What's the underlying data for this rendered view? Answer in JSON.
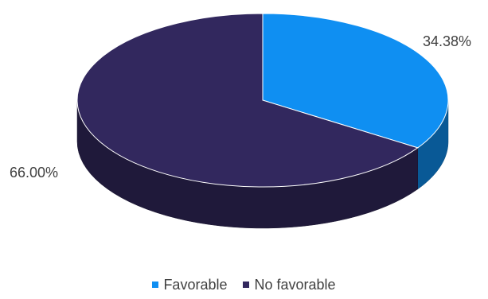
{
  "chart_data": {
    "type": "pie",
    "categories": [
      "Favorable",
      "No favorable"
    ],
    "values": [
      34.38,
      66.0
    ],
    "data_labels": [
      "34.38%",
      "66.00%"
    ],
    "colors": [
      "#0f8ff2",
      "#32285e"
    ],
    "legend_position": "bottom",
    "three_d": true
  },
  "legend": {
    "items": [
      {
        "label": "Favorable",
        "color": "#0f8ff2"
      },
      {
        "label": "No favorable",
        "color": "#32285e"
      }
    ]
  }
}
